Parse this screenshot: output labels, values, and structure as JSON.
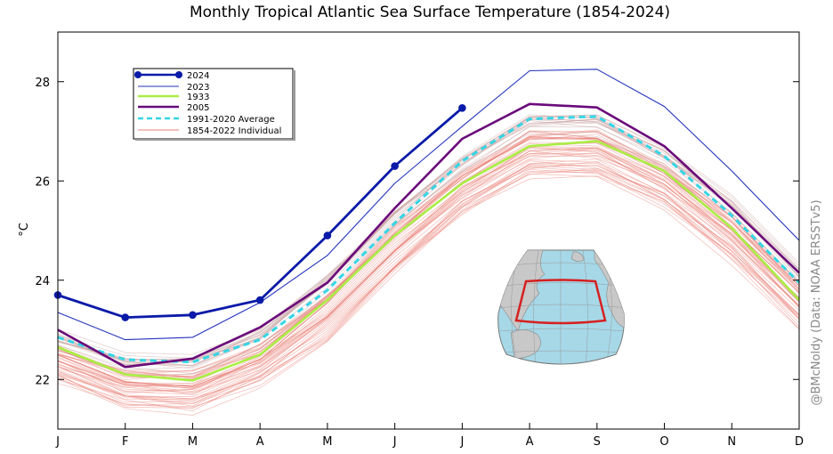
{
  "chart_data": {
    "type": "line",
    "title": "Monthly Tropical Atlantic Sea Surface Temperature (1854-2024)",
    "xlabel": "",
    "ylabel": "°C",
    "categories": [
      "J",
      "F",
      "M",
      "A",
      "M",
      "J",
      "J",
      "A",
      "S",
      "O",
      "N",
      "D"
    ],
    "ylim": [
      21,
      29
    ],
    "yticks": [
      22,
      24,
      26,
      28
    ],
    "grid": false,
    "legend_position": "top-left",
    "credit": "@BMcNoldy (Data: NOAA ERSSTv5)",
    "series": [
      {
        "name": "1854-2022 Individual",
        "color": "#e8827a",
        "style": "thin-band",
        "values": [
          22.5,
          21.95,
          21.85,
          22.4,
          23.55,
          24.95,
          26.1,
          26.85,
          26.85,
          26.15,
          25.05,
          23.75
        ],
        "spread_low": [
          -0.7,
          -0.7,
          -0.7,
          -0.7,
          -1.0,
          -1.1,
          -1.0,
          -1.0,
          -1.0,
          -0.9,
          -0.9,
          -0.9
        ],
        "spread_high": [
          0.5,
          0.6,
          0.7,
          0.7,
          0.7,
          0.6,
          0.5,
          0.6,
          0.6,
          0.6,
          0.7,
          0.6
        ]
      },
      {
        "name": "1991-2020 Average",
        "color": "#33d6e6",
        "style": "dashed",
        "values": [
          22.85,
          22.4,
          22.35,
          22.8,
          23.8,
          25.15,
          26.4,
          27.25,
          27.3,
          26.5,
          25.3,
          23.95
        ]
      },
      {
        "name": "1933",
        "color": "#aaee44",
        "style": "solid",
        "values": [
          22.65,
          22.1,
          21.98,
          22.5,
          23.6,
          24.9,
          25.95,
          26.7,
          26.8,
          26.2,
          25.05,
          23.6
        ]
      },
      {
        "name": "2005",
        "color": "#6a0a7a",
        "style": "solid",
        "values": [
          23.0,
          22.25,
          22.42,
          23.05,
          23.95,
          25.45,
          26.85,
          27.55,
          27.48,
          26.7,
          25.45,
          24.15
        ]
      },
      {
        "name": "2023",
        "color": "#2233bb",
        "style": "thin",
        "values": [
          23.35,
          22.8,
          22.85,
          23.55,
          24.5,
          25.95,
          27.1,
          28.22,
          28.25,
          27.5,
          26.2,
          24.8
        ]
      },
      {
        "name": "2024",
        "color": "#0a1aa8",
        "style": "markers",
        "values": [
          23.7,
          23.25,
          23.3,
          23.6,
          24.9,
          26.3,
          27.47,
          null,
          null,
          null,
          null,
          null
        ]
      }
    ],
    "legend_order": [
      "2024",
      "2023",
      "1933",
      "2005",
      "1991-2020 Average",
      "1854-2022 Individual"
    ],
    "inset": "map of the Atlantic Ocean with the tropical Atlantic region outlined in red"
  }
}
